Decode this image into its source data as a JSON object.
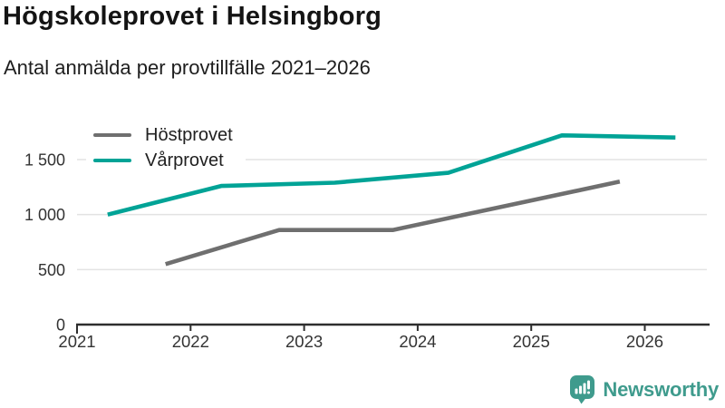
{
  "header": {
    "title": "Högskoleprovet i Helsingborg",
    "subtitle": "Antal anmälda per provtillfälle 2021–2026"
  },
  "chart_data": {
    "type": "line",
    "title": "Högskoleprovet i Helsingborg",
    "subtitle": "Antal anmälda per provtillfälle 2021–2026",
    "x_axis": {
      "tick_labels": [
        "2021",
        "2022",
        "2023",
        "2024",
        "2025",
        "2026"
      ],
      "tick_values": [
        2021,
        2022,
        2023,
        2024,
        2025,
        2026
      ],
      "range": [
        2021,
        2026.55
      ]
    },
    "y_axis": {
      "tick_labels": [
        "0",
        "500",
        "1 000",
        "1 500"
      ],
      "tick_values": [
        0,
        500,
        1000,
        1500
      ],
      "range": [
        0,
        1800
      ],
      "grid": true,
      "grid_color": "#e3e3e3",
      "axis_color": "#2e2e2e"
    },
    "legend_position": "top-left",
    "series": [
      {
        "name": "Höstprovet",
        "color": "#6f6f6f",
        "points": [
          {
            "x": 2021.78,
            "value": 550
          },
          {
            "x": 2022.78,
            "value": 860
          },
          {
            "x": 2023.78,
            "value": 860
          },
          {
            "x": 2024.78,
            "value": 1080
          },
          {
            "x": 2025.78,
            "value": 1300
          }
        ]
      },
      {
        "name": "Vårprovet",
        "color": "#00a396",
        "points": [
          {
            "x": 2021.27,
            "value": 1000
          },
          {
            "x": 2022.27,
            "value": 1260
          },
          {
            "x": 2023.27,
            "value": 1290
          },
          {
            "x": 2024.27,
            "value": 1380
          },
          {
            "x": 2025.27,
            "value": 1720
          },
          {
            "x": 2026.27,
            "value": 1700
          }
        ]
      }
    ]
  },
  "footer": {
    "brand": "Newsworthy",
    "brand_color": "#3f9b8d",
    "logo_icon": "speech-bubble-bar-chart-icon"
  }
}
